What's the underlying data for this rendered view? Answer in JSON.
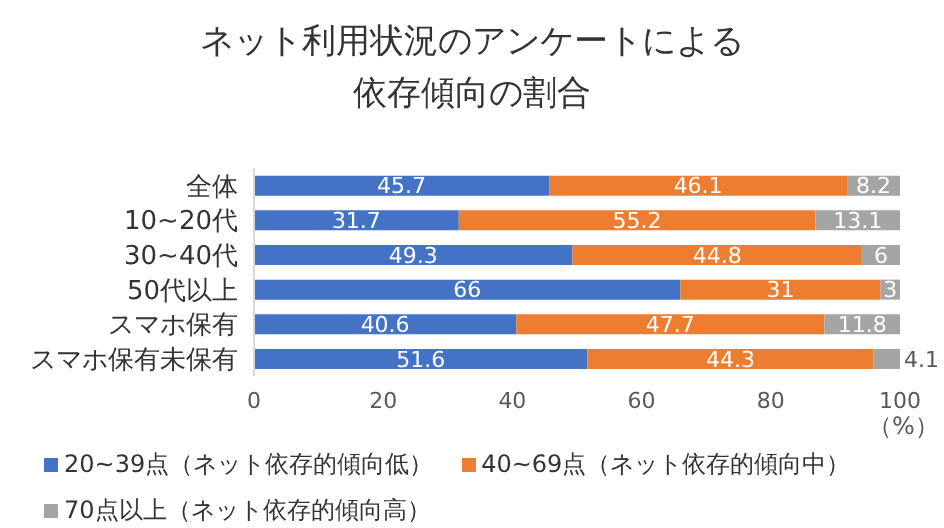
{
  "chart_data": {
    "type": "bar",
    "orientation": "horizontal",
    "stacked": true,
    "title": "ネット利用状況のアンケートによる依存傾向の割合",
    "xlabel": "（%）",
    "categories": [
      "全体",
      "10~20代",
      "30~40代",
      "50代以上",
      "スマホ保有",
      "スマホ保有未保有"
    ],
    "series": [
      {
        "name": "20~39点（ネット依存的傾向低）",
        "color": "#4472c4",
        "values": [
          45.7,
          31.7,
          49.3,
          66,
          40.6,
          51.6
        ]
      },
      {
        "name": "40~69点（ネット依存的傾向中）",
        "color": "#ed7d31",
        "values": [
          46.1,
          55.2,
          44.8,
          31,
          47.7,
          44.3
        ]
      },
      {
        "name": "70点以上（ネット依存的傾向高）",
        "color": "#a5a5a5",
        "values": [
          8.2,
          13.1,
          6,
          3,
          11.8,
          4.1
        ]
      }
    ],
    "xlim": [
      0,
      100
    ],
    "xticks": [
      0,
      20,
      40,
      60,
      80,
      100
    ],
    "data_labels": true,
    "legend": "bottom"
  }
}
